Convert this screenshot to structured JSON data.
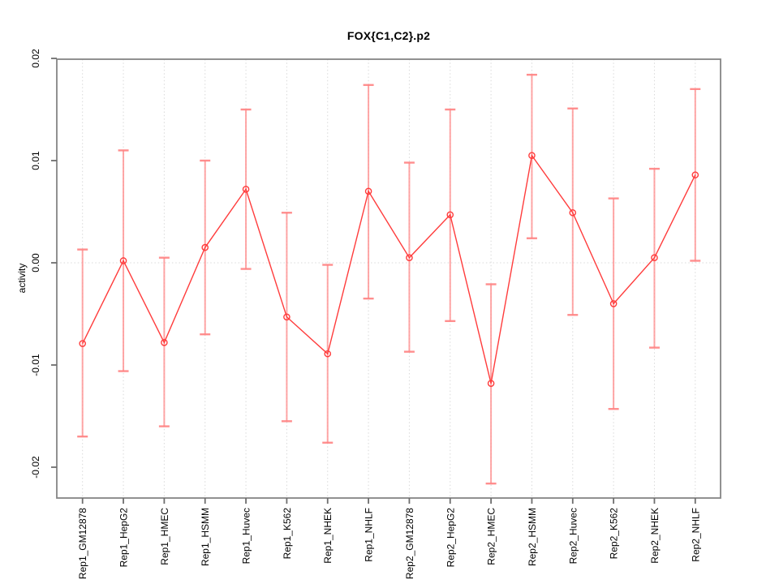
{
  "page": {
    "background": "#ffffff"
  },
  "chart_data": {
    "type": "line",
    "title": "FOX{C1,C2}.p2",
    "xlabel": "",
    "ylabel": "activity",
    "legend": "none",
    "marker": "open-circle",
    "grid": {
      "vertical_per_category": true,
      "horizontal_zero_line": true,
      "style": "dotted"
    },
    "xtick_label_rotation": 90,
    "ytick_label_rotation": 90,
    "ylim": [
      -0.023,
      0.0199
    ],
    "yticks": [
      -0.02,
      -0.01,
      0,
      0.01,
      0.02
    ],
    "ytick_labels": [
      "-0.02",
      "-0.01",
      "0.00",
      "0.01",
      "0.02"
    ],
    "categories": [
      "Rep1_GM12878",
      "Rep1_HepG2",
      "Rep1_HMEC",
      "Rep1_HSMM",
      "Rep1_Huvec",
      "Rep1_K562",
      "Rep1_NHEK",
      "Rep1_NHLF",
      "Rep2_GM12878",
      "Rep2_HepG2",
      "Rep2_HMEC",
      "Rep2_HSMM",
      "Rep2_Huvec",
      "Rep2_K562",
      "Rep2_NHEK",
      "Rep2_NHLF"
    ],
    "series": [
      {
        "name": "activity",
        "values": [
          -0.0079,
          0.0002,
          -0.0078,
          0.0015,
          0.0072,
          -0.0053,
          -0.0089,
          0.007,
          0.0005,
          0.0047,
          -0.0118,
          0.0105,
          0.0049,
          -0.004,
          0.0005,
          0.0086
        ],
        "err_high": [
          0.0013,
          0.011,
          0.0005,
          0.01,
          0.015,
          0.0049,
          -0.0002,
          0.0174,
          0.0098,
          0.015,
          -0.0021,
          0.0184,
          0.0151,
          0.0063,
          0.0092,
          0.017
        ],
        "err_low": [
          -0.017,
          -0.0106,
          -0.016,
          -0.007,
          -0.0006,
          -0.0155,
          -0.0176,
          -0.0035,
          -0.0087,
          -0.0057,
          -0.0216,
          0.0024,
          -0.0051,
          -0.0143,
          -0.0083,
          0.0002
        ]
      }
    ],
    "colors": {
      "series_line": "#ff3c3c",
      "error_bar": "#ff9090",
      "error_bar_cap": "#ff8282",
      "gridline": "#d9d9d9",
      "axis_box": "#858585",
      "tick": "#6e6e6e",
      "text": "#000000"
    }
  }
}
